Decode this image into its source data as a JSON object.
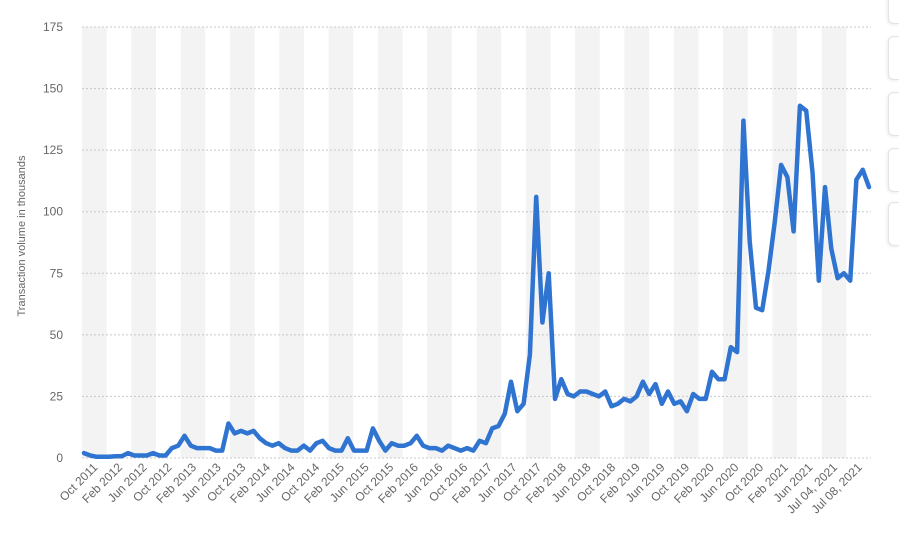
{
  "chart_data": {
    "type": "line",
    "ylabel": "Transaction volume in thousands",
    "ylim": [
      0,
      175
    ],
    "yticks": [
      0,
      25,
      50,
      75,
      100,
      125,
      150,
      175
    ],
    "grid": true,
    "line_color": "#2f74d0",
    "x_tick_labels": [
      "Oct 2011",
      "Feb 2012",
      "Jun 2012",
      "Oct 2012",
      "Feb 2013",
      "Jun 2013",
      "Oct 2013",
      "Feb 2014",
      "Jun 2014",
      "Oct 2014",
      "Feb 2015",
      "Jun 2015",
      "Oct 2015",
      "Feb 2016",
      "Jun 2016",
      "Oct 2016",
      "Feb 2017",
      "Jun 2017",
      "Oct 2017",
      "Feb 2018",
      "Jun 2018",
      "Oct 2018",
      "Feb 2019",
      "Jun 2019",
      "Oct 2019",
      "Feb 2020",
      "Jun 2020",
      "Oct 2020",
      "Feb 2021",
      "Jun 2021",
      "Jul 04, 2021",
      "Jul 08, 2021"
    ],
    "values": [
      2,
      1,
      0.5,
      0.5,
      0.5,
      0.7,
      0.7,
      2,
      1,
      1,
      1,
      2,
      1,
      1,
      4,
      5,
      9,
      5,
      4,
      4,
      4,
      3,
      3,
      14,
      10,
      11,
      10,
      11,
      8,
      6,
      5,
      6,
      4,
      3,
      3,
      5,
      3,
      6,
      7,
      4,
      3,
      3,
      8,
      3,
      3,
      3,
      12,
      7,
      3,
      6,
      5,
      5,
      6,
      9,
      5,
      4,
      4,
      3,
      5,
      4,
      3,
      4,
      3,
      7,
      6,
      12,
      13,
      18,
      31,
      19,
      22,
      42,
      106,
      55,
      75,
      24,
      32,
      26,
      25,
      27,
      27,
      26,
      25,
      27,
      21,
      22,
      24,
      23,
      25,
      31,
      26,
      30,
      22,
      27,
      22,
      23,
      19,
      26,
      24,
      24,
      35,
      32,
      32,
      45,
      43,
      137,
      88,
      61,
      60,
      76,
      96,
      119,
      114,
      92,
      143,
      141,
      116,
      72,
      110,
      85,
      73,
      75,
      72,
      113,
      117,
      110
    ]
  }
}
